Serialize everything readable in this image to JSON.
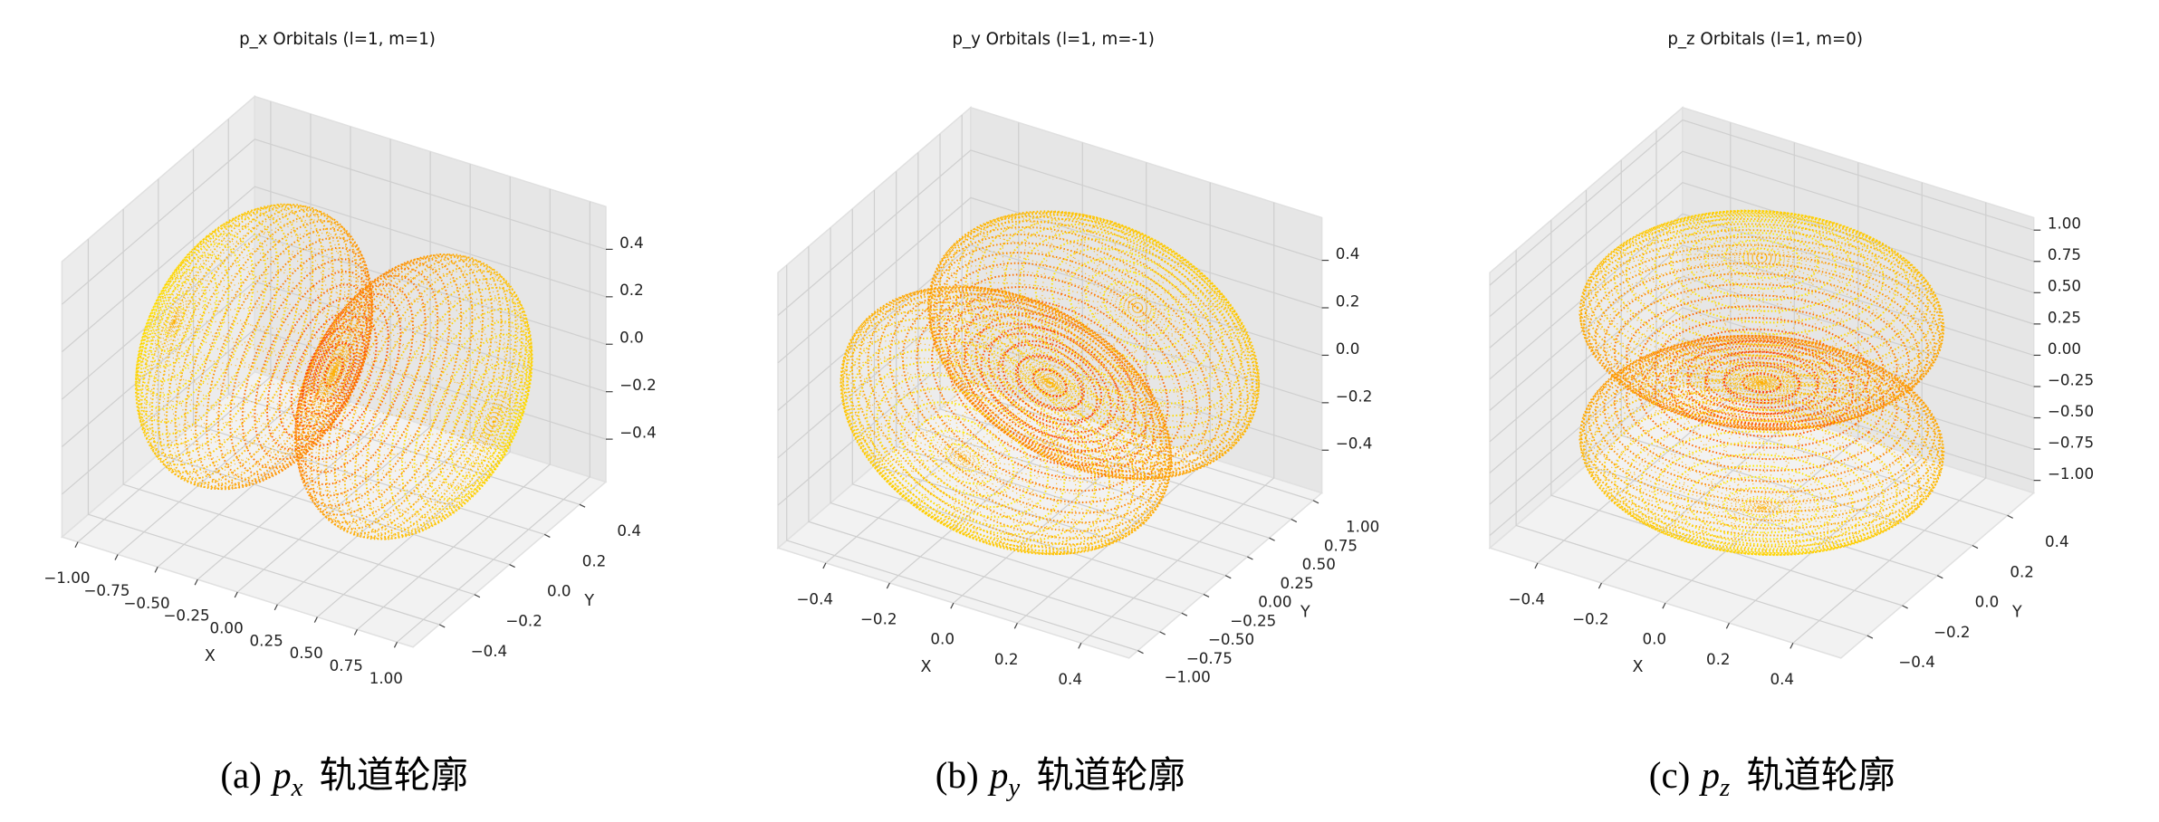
{
  "chart_data": [
    {
      "type": "scatter3d",
      "title": "p_x Orbitals (l=1, m=1)",
      "xlabel": "X",
      "ylabel": "Y",
      "grid": true,
      "xlim": [
        -1.1,
        1.1
      ],
      "ylim": [
        -0.55,
        0.55
      ],
      "zlim": [
        -0.58,
        0.58
      ],
      "xticks": [
        {
          "value": -1,
          "label": "−1.00"
        },
        {
          "value": -0.75,
          "label": "−0.75"
        },
        {
          "value": -0.5,
          "label": "−0.50"
        },
        {
          "value": -0.25,
          "label": "−0.25"
        },
        {
          "value": 0,
          "label": "0.00"
        },
        0.25,
        {
          "value": 0.5,
          "label": "0.50"
        },
        0.75,
        {
          "value": 1,
          "label": "1.00"
        }
      ],
      "yticks": [
        {
          "value": -0.4,
          "label": "−0.4"
        },
        {
          "value": -0.2,
          "label": "−0.2"
        },
        {
          "value": 0,
          "label": "0.0"
        },
        0.2,
        0.4
      ],
      "zticks": [
        {
          "value": -0.4,
          "label": "−0.4"
        },
        {
          "value": -0.2,
          "label": "−0.2"
        },
        {
          "value": 0,
          "label": "0.0"
        },
        0.2,
        0.4
      ],
      "caption": {
        "label": "(a)",
        "symbol": "p",
        "subscript": "x",
        "text": "轨道轮廓"
      }
    },
    {
      "type": "scatter3d",
      "title": "p_y Orbitals (l=1, m=-1)",
      "xlabel": "X",
      "ylabel": "Y",
      "grid": true,
      "xlim": [
        -0.55,
        0.55
      ],
      "ylim": [
        -1.1,
        1.1
      ],
      "zlim": [
        -0.58,
        0.58
      ],
      "xticks": [
        {
          "value": -0.4,
          "label": "−0.4"
        },
        {
          "value": -0.2,
          "label": "−0.2"
        },
        {
          "value": 0,
          "label": "0.0"
        },
        0.2,
        0.4
      ],
      "yticks": [
        {
          "value": -1,
          "label": "−1.00"
        },
        {
          "value": -0.75,
          "label": "−0.75"
        },
        {
          "value": -0.5,
          "label": "−0.50"
        },
        {
          "value": -0.25,
          "label": "−0.25"
        },
        {
          "value": 0,
          "label": "0.00"
        },
        0.25,
        {
          "value": 0.5,
          "label": "0.50"
        },
        0.75,
        {
          "value": 1,
          "label": "1.00"
        }
      ],
      "zticks": [
        {
          "value": -0.4,
          "label": "−0.4"
        },
        {
          "value": -0.2,
          "label": "−0.2"
        },
        {
          "value": 0,
          "label": "0.0"
        },
        0.2,
        0.4
      ],
      "caption": {
        "label": "(b)",
        "symbol": "p",
        "subscript": "y",
        "text": "轨道轮廓"
      }
    },
    {
      "type": "scatter3d",
      "title": "p_z Orbitals (l=1, m=0)",
      "xlabel": "X",
      "ylabel": "Y",
      "grid": true,
      "xlim": [
        -0.55,
        0.55
      ],
      "ylim": [
        -0.55,
        0.55
      ],
      "zlim": [
        -1.1,
        1.1
      ],
      "xticks": [
        {
          "value": -0.4,
          "label": "−0.4"
        },
        {
          "value": -0.2,
          "label": "−0.2"
        },
        {
          "value": 0,
          "label": "0.0"
        },
        0.2,
        0.4
      ],
      "yticks": [
        {
          "value": -0.4,
          "label": "−0.4"
        },
        {
          "value": -0.2,
          "label": "−0.2"
        },
        {
          "value": 0,
          "label": "0.0"
        },
        0.2,
        0.4
      ],
      "zticks": [
        {
          "value": -1,
          "label": "−1.00"
        },
        {
          "value": -0.75,
          "label": "−0.75"
        },
        {
          "value": -0.5,
          "label": "−0.50"
        },
        {
          "value": -0.25,
          "label": "−0.25"
        },
        {
          "value": 0,
          "label": "0.00"
        },
        0.25,
        {
          "value": 0.5,
          "label": "0.50"
        },
        0.75,
        {
          "value": 1,
          "label": "1.00"
        }
      ],
      "caption": {
        "label": "(c)",
        "symbol": "p",
        "subscript": "z",
        "text": "轨道轮廓"
      }
    }
  ]
}
